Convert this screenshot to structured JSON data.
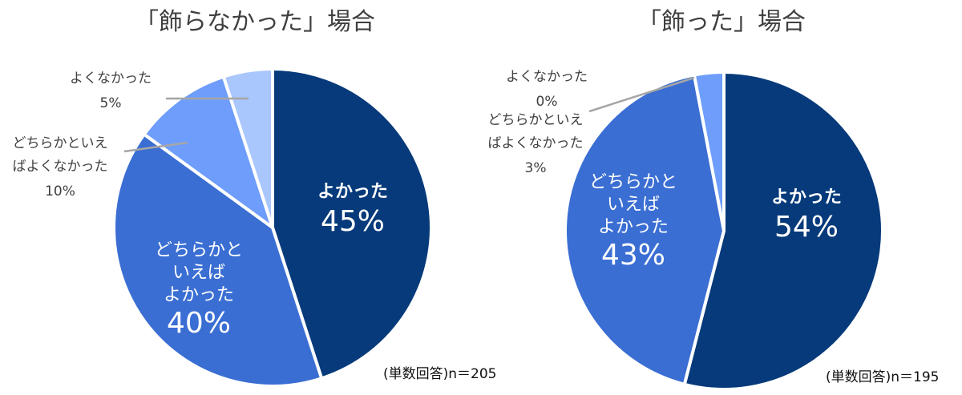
{
  "chart_data": [
    {
      "type": "pie",
      "title": "「飾らなかった」場合",
      "note": "(単数回答)n＝205",
      "slices": [
        {
          "label": "よかった",
          "value": 45,
          "display": "45%",
          "color": "#063a7a",
          "text_color": "#ffffff",
          "label_position": "inside"
        },
        {
          "label": "どちらかといえばよかった",
          "value": 40,
          "display": "40%",
          "color": "#3a6ed3",
          "text_color": "#ffffff",
          "label_position": "inside"
        },
        {
          "label": "どちらかといえばよくなかった",
          "value": 10,
          "display": "10%",
          "color": "#6e9dfb",
          "text_color": "#404040",
          "label_position": "outside"
        },
        {
          "label": "よくなかった",
          "value": 5,
          "display": "5%",
          "color": "#a9c6fd",
          "text_color": "#404040",
          "label_position": "outside"
        }
      ]
    },
    {
      "type": "pie",
      "title": "「飾った」場合",
      "note": "(単数回答)n＝195",
      "slices": [
        {
          "label": "よかった",
          "value": 54,
          "display": "54%",
          "color": "#063a7a",
          "text_color": "#ffffff",
          "label_position": "inside"
        },
        {
          "label": "どちらかといえばよかった",
          "value": 43,
          "display": "43%",
          "color": "#3a6ed3",
          "text_color": "#ffffff",
          "label_position": "inside"
        },
        {
          "label": "どちらかといえばよくなかった",
          "value": 3,
          "display": "3%",
          "color": "#6e9dfb",
          "text_color": "#404040",
          "label_position": "outside"
        },
        {
          "label": "よくなかった",
          "value": 0,
          "display": "0%",
          "color": "#a9c6fd",
          "text_color": "#404040",
          "label_position": "outside"
        }
      ]
    }
  ],
  "label_lines": {
    "left": {
      "yokatta": [
        "よかった"
      ],
      "dochira_yokatta": [
        "どちらかと",
        "いえば",
        "よかった"
      ],
      "dochira_yokunakatta": [
        "どちらかといえ",
        "ばよくなかった"
      ],
      "yokunakatta": [
        "よくなかった"
      ]
    },
    "right": {
      "yokatta": [
        "よかった"
      ],
      "dochira_yokatta": [
        "どちらかと",
        "いえば",
        "よかった"
      ],
      "dochira_yokunakatta": [
        "どちらかといえ",
        "ばよくなかった"
      ],
      "yokunakatta": [
        "よくなかった"
      ]
    }
  }
}
